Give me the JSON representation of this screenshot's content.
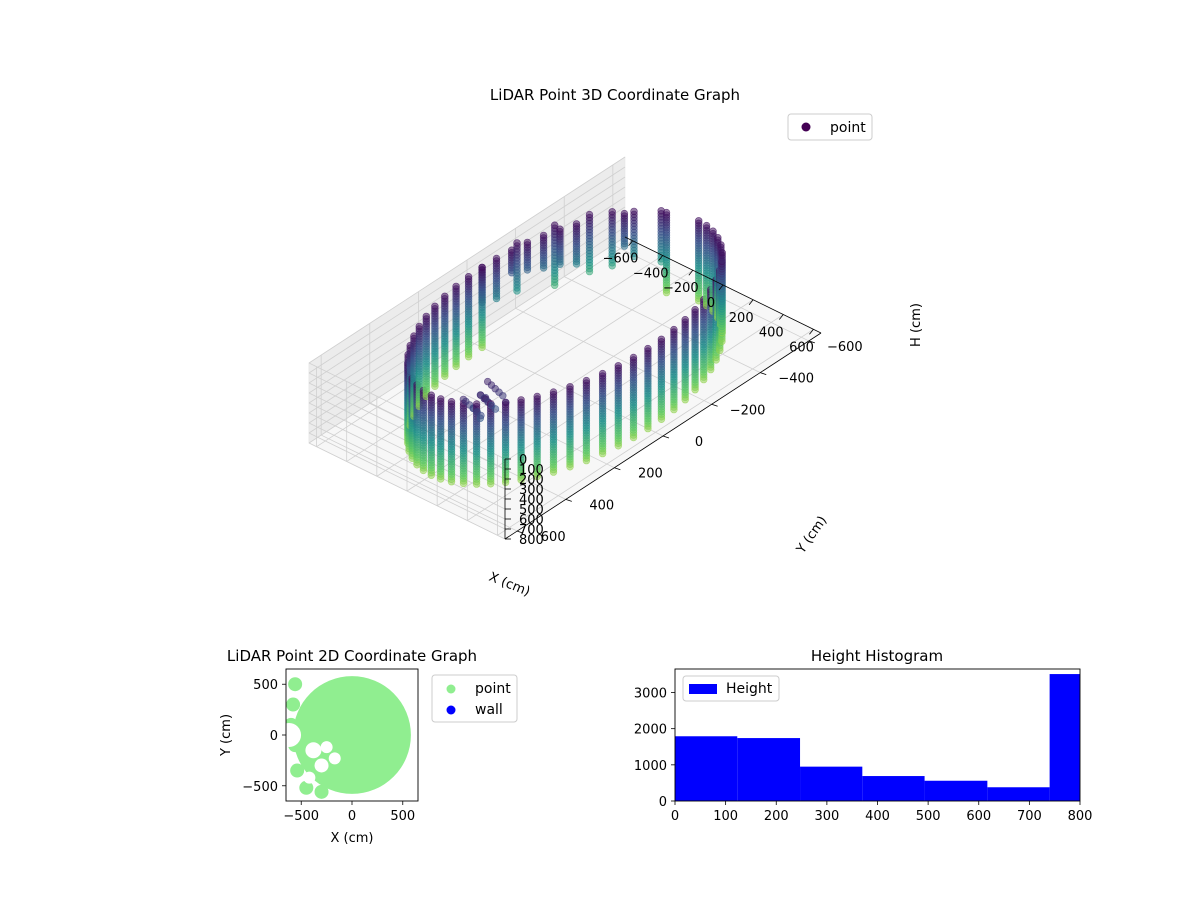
{
  "chart_data": [
    {
      "type": "scatter",
      "title": "LiDAR Point 3D Coordinate Graph",
      "xlabel": "X (cm)",
      "ylabel": "Y (cm)",
      "zlabel": "H (cm)",
      "xlim": [
        -650,
        650
      ],
      "ylim": [
        -650,
        650
      ],
      "zlim": [
        0,
        800
      ],
      "z_inverted": true,
      "x_ticks": [
        -600,
        -400,
        -200,
        0,
        200,
        400,
        600
      ],
      "y_ticks": [
        -600,
        -400,
        -200,
        0,
        200,
        400,
        600
      ],
      "z_ticks": [
        0,
        100,
        200,
        300,
        400,
        500,
        600,
        700,
        800
      ],
      "colormap": [
        "#440154",
        "#3b528b",
        "#21918c",
        "#5ec962",
        "#fde725"
      ],
      "legend": {
        "entries": [
          "point"
        ],
        "position": "top-right"
      },
      "grid": true,
      "series": [
        {
          "name": "point",
          "description_of_shape": "cylindrical wall",
          "wall": {
            "radius": 550,
            "arc_start_deg": 0,
            "arc_end_deg": 130,
            "h_min": 0,
            "h_max": 800
          },
          "open_side_columns": [
            {
              "x": -560,
              "y": -150,
              "h_min": 0,
              "h_max": 500
            },
            {
              "x": -520,
              "y": -280,
              "h_min": 0,
              "h_max": 600
            },
            {
              "x": -450,
              "y": -380,
              "h_min": 0,
              "h_max": 580
            },
            {
              "x": -380,
              "y": -430,
              "h_min": 0,
              "h_max": 560
            },
            {
              "x": -300,
              "y": -470,
              "h_min": 0,
              "h_max": 450
            },
            {
              "x": -200,
              "y": -520,
              "h_min": 0,
              "h_max": 520
            }
          ],
          "top_points": [
            {
              "x": 200,
              "y": 450,
              "h": 50
            },
            {
              "x": 150,
              "y": 420,
              "h": 120
            },
            {
              "x": 220,
              "y": 380,
              "h": 180
            },
            {
              "x": 180,
              "y": 460,
              "h": 240
            },
            {
              "x": 100,
              "y": 480,
              "h": 80
            }
          ]
        }
      ]
    },
    {
      "type": "scatter",
      "title": "LiDAR Point 2D Coordinate Graph",
      "xlabel": "X (cm)",
      "ylabel": "Y (cm)",
      "xlim": [
        -650,
        650
      ],
      "ylim": [
        -650,
        650
      ],
      "x_ticks": [
        -500,
        0,
        500
      ],
      "y_ticks": [
        -500,
        0,
        500
      ],
      "legend": {
        "entries": [
          "point",
          "wall"
        ],
        "position": "outside-right"
      },
      "series": [
        {
          "name": "point",
          "color": "#90ee90",
          "radius": 580
        },
        {
          "name": "wall",
          "color": "#0000ff",
          "points": []
        }
      ]
    },
    {
      "type": "bar",
      "title": "Height Histogram",
      "xlabel": "",
      "ylabel": "",
      "xlim": [
        0,
        800
      ],
      "ylim": [
        0,
        3650
      ],
      "x_ticks": [
        0,
        100,
        200,
        300,
        400,
        500,
        600,
        700,
        800
      ],
      "y_ticks": [
        0,
        1000,
        2000,
        3000
      ],
      "bin_edges": [
        0,
        123,
        247,
        370,
        493,
        617,
        740,
        800
      ],
      "values": [
        1790,
        1740,
        950,
        690,
        560,
        380,
        3510
      ],
      "color": "#0000ff",
      "legend": {
        "entries": [
          "Height"
        ],
        "position": "top-left"
      },
      "series": [
        {
          "name": "Height"
        }
      ]
    }
  ]
}
